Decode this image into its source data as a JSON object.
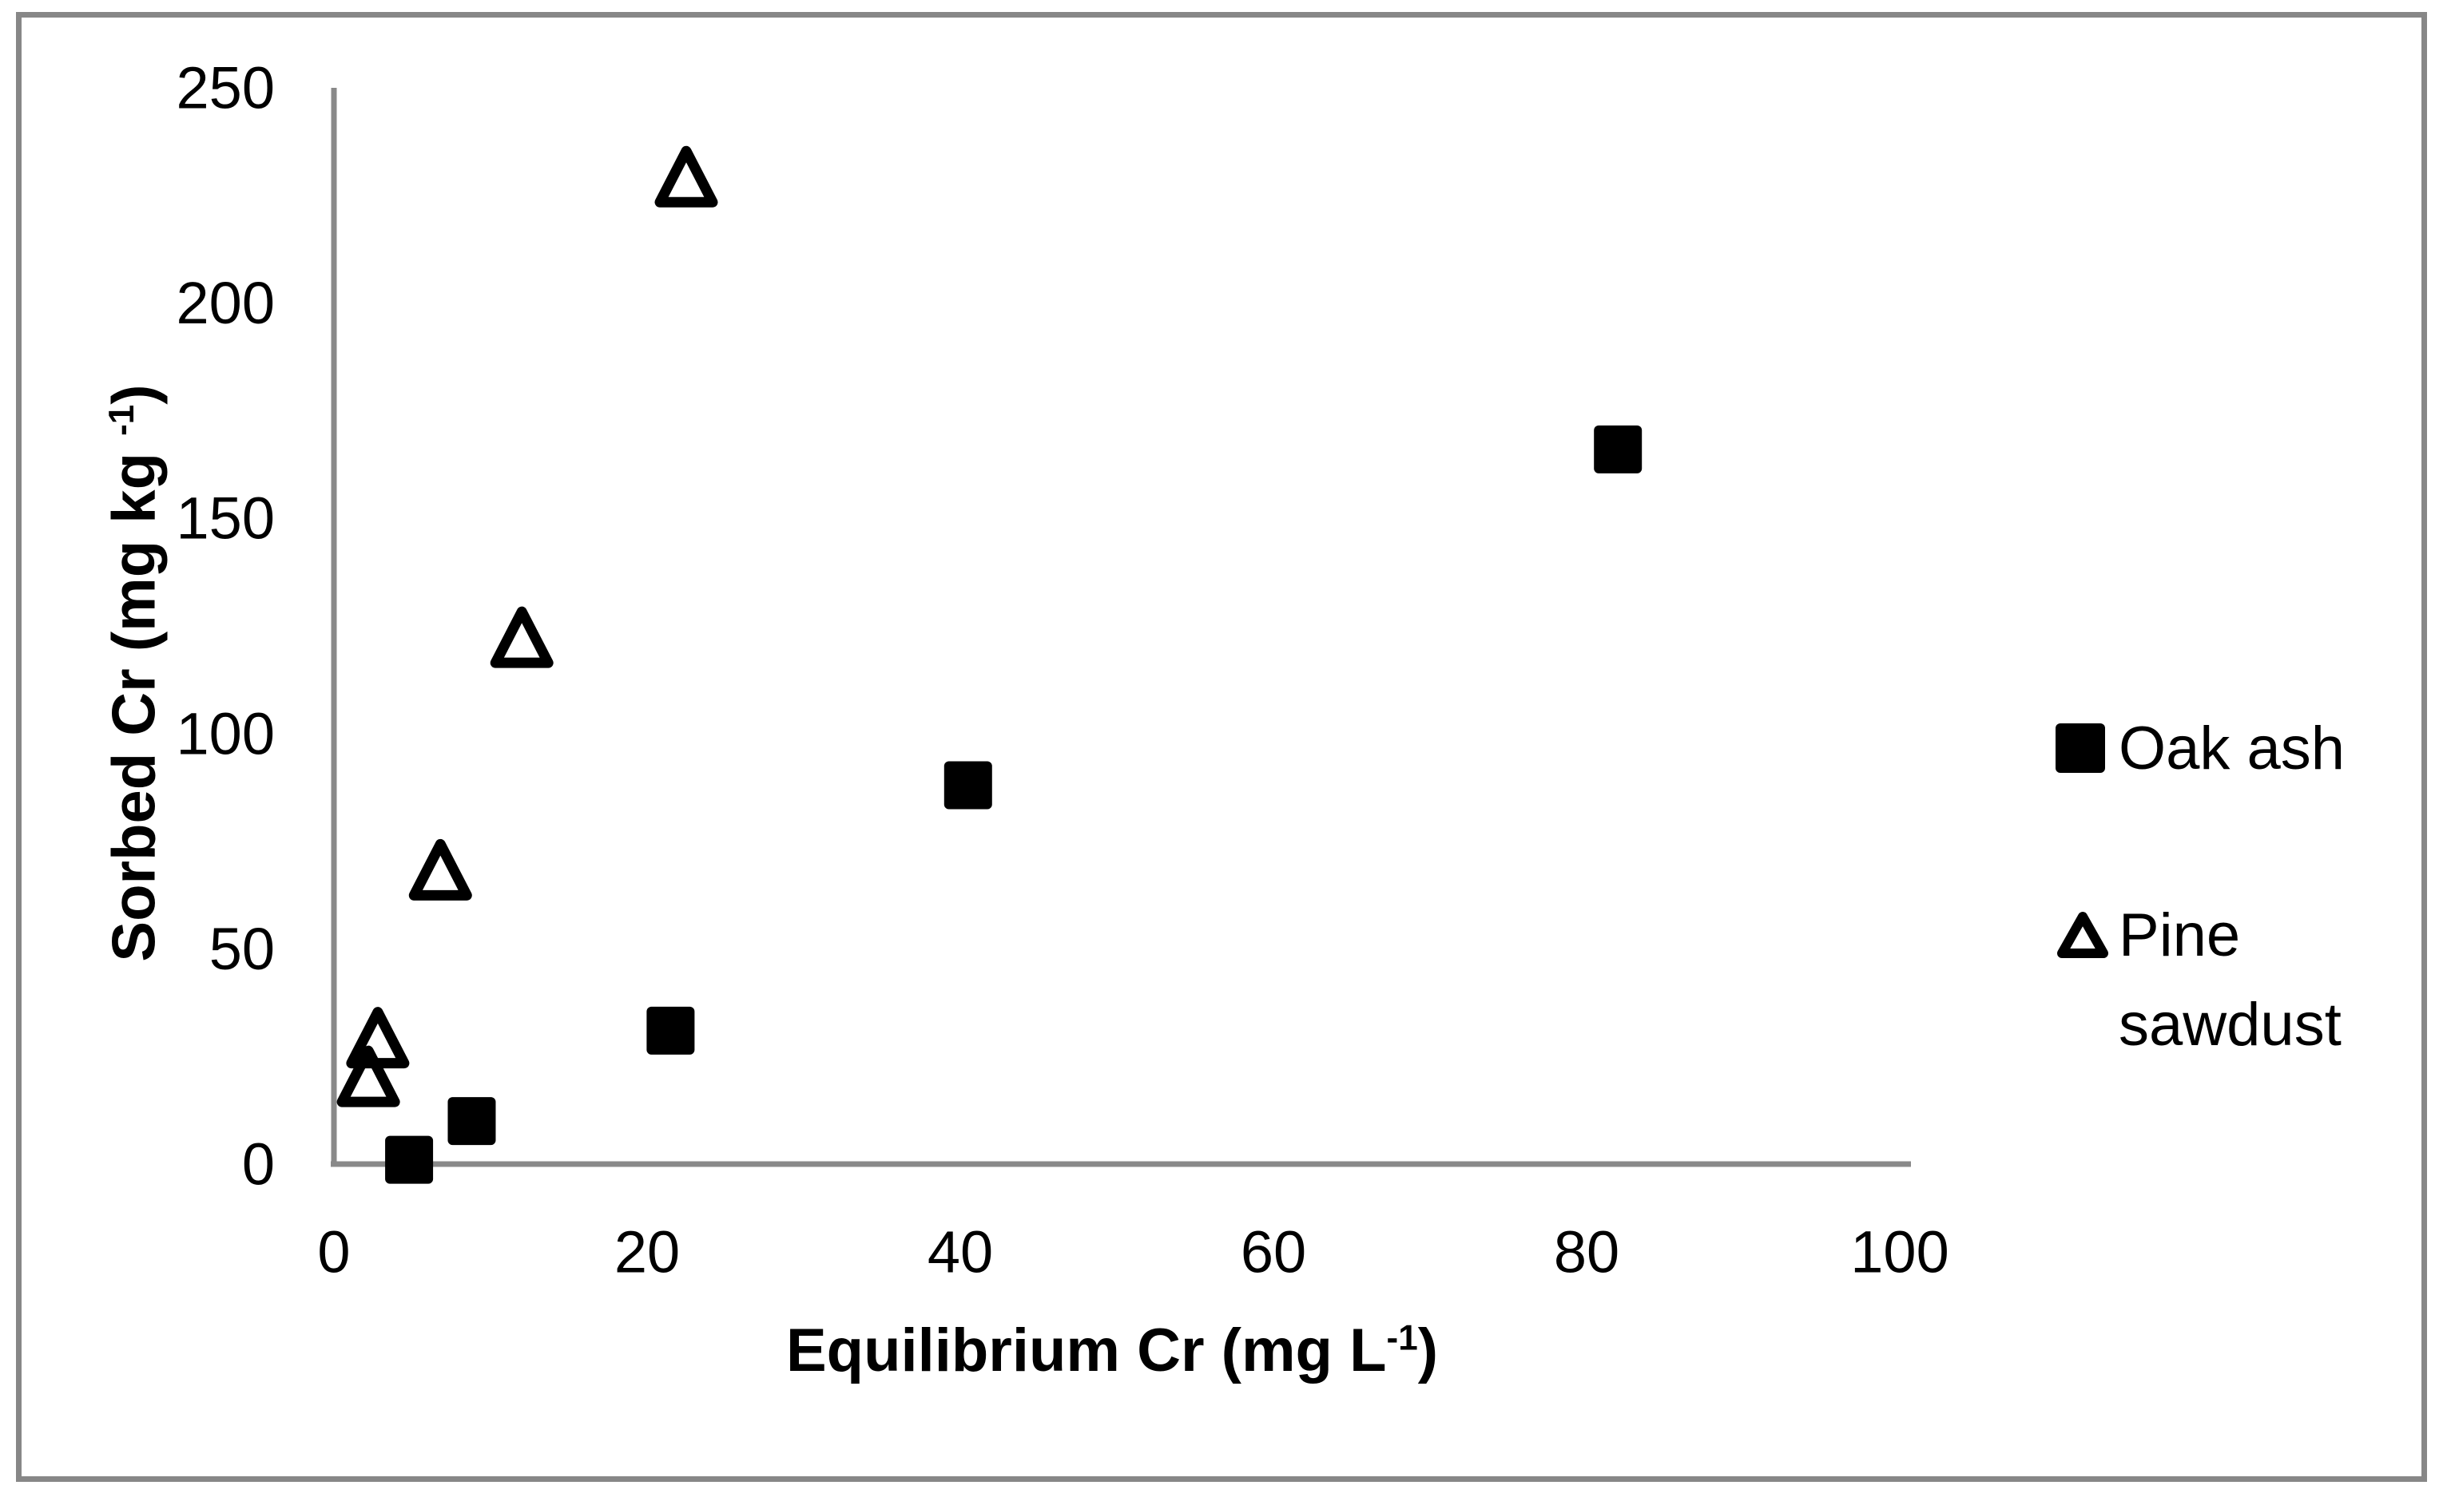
{
  "figure": {
    "border_color": "#878787",
    "axis_color": "#898989",
    "marker_color": "#000000",
    "background_color": "#ffffff"
  },
  "chart_data": {
    "type": "scatter",
    "title": "",
    "xlabel_main": "Equilibrium Cr (mg L",
    "xlabel_sup": "-1",
    "xlabel_suffix": ")",
    "ylabel_main": "Sorbed Cr (mg kg ",
    "ylabel_sup": "-1",
    "ylabel_suffix": ")",
    "xlim": [
      0,
      100
    ],
    "ylim": [
      0,
      250
    ],
    "x_ticks": [
      0,
      20,
      40,
      60,
      80,
      100
    ],
    "y_ticks": [
      0,
      50,
      100,
      150,
      200,
      250
    ],
    "grid": false,
    "legend_position": "right",
    "series": [
      {
        "name": "Oak ash",
        "marker": "filled-square",
        "points": [
          [
            4.8,
            1
          ],
          [
            8.8,
            10
          ],
          [
            21.5,
            31
          ],
          [
            40.5,
            88
          ],
          [
            82,
            166
          ]
        ]
      },
      {
        "name": "Pine sawdust",
        "marker": "open-triangle",
        "points": [
          [
            2.2,
            20
          ],
          [
            2.8,
            29
          ],
          [
            6.8,
            68
          ],
          [
            12,
            122
          ],
          [
            22.5,
            229
          ]
        ]
      }
    ]
  },
  "legend": {
    "oak_label": "Oak ash",
    "pine_label_line1": "Pine",
    "pine_label_line2": "sawdust"
  }
}
